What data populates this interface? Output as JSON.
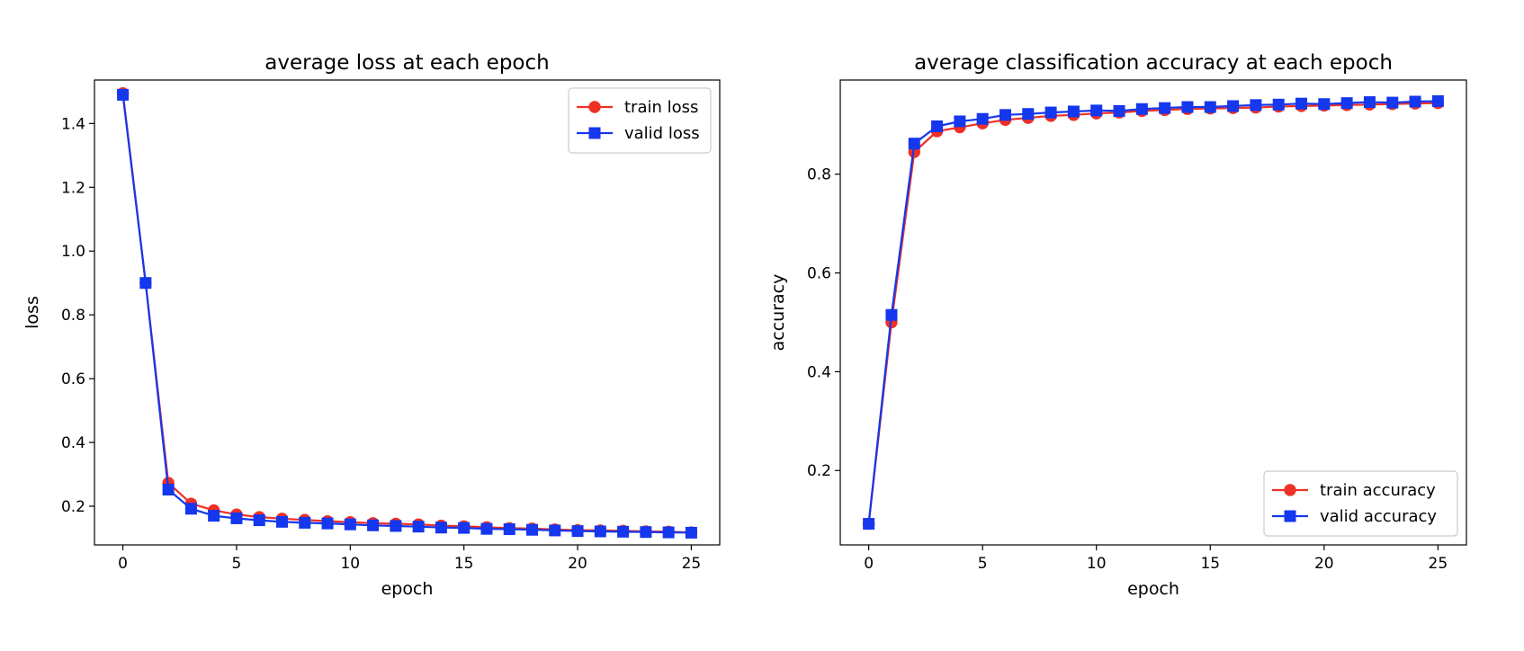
{
  "chart_data": [
    {
      "type": "line",
      "title": "average loss at each epoch",
      "xlabel": "epoch",
      "ylabel": "loss",
      "xlim": [
        -1.25,
        26.25
      ],
      "ylim": [
        0.0787,
        1.5363
      ],
      "xticks": [
        0,
        5,
        10,
        15,
        20,
        25
      ],
      "yticks": [
        0.2,
        0.4,
        0.6,
        0.8,
        1.0,
        1.2,
        1.4
      ],
      "xtick_labels": [
        "0",
        "5",
        "10",
        "15",
        "20",
        "25"
      ],
      "ytick_labels": [
        "0.2",
        "0.4",
        "0.6",
        "0.8",
        "1.0",
        "1.2",
        "1.4"
      ],
      "legend": "upper-right",
      "grid": false,
      "x": [
        0,
        1,
        2,
        3,
        4,
        5,
        6,
        7,
        8,
        9,
        10,
        11,
        12,
        13,
        14,
        15,
        16,
        17,
        18,
        19,
        20,
        21,
        22,
        23,
        24,
        25
      ],
      "series": [
        {
          "name": "train loss",
          "color": "#ee3026",
          "marker": "circle",
          "values": [
            1.495,
            0.9,
            0.273,
            0.208,
            0.187,
            0.174,
            0.166,
            0.161,
            0.157,
            0.153,
            0.15,
            0.147,
            0.145,
            0.143,
            0.139,
            0.137,
            0.134,
            0.131,
            0.13,
            0.127,
            0.125,
            0.124,
            0.123,
            0.121,
            0.12,
            0.118
          ]
        },
        {
          "name": "valid loss",
          "color": "#1537ee",
          "marker": "square",
          "values": [
            1.49,
            0.9,
            0.252,
            0.192,
            0.17,
            0.162,
            0.156,
            0.151,
            0.148,
            0.146,
            0.143,
            0.14,
            0.138,
            0.136,
            0.133,
            0.132,
            0.129,
            0.128,
            0.126,
            0.124,
            0.122,
            0.121,
            0.12,
            0.119,
            0.118,
            0.117
          ]
        }
      ]
    },
    {
      "type": "line",
      "title": "average classification accuracy at each epoch",
      "xlabel": "epoch",
      "ylabel": "accuracy",
      "xlim": [
        -1.25,
        26.25
      ],
      "ylim": [
        0.0493,
        0.9907
      ],
      "xticks": [
        0,
        5,
        10,
        15,
        20,
        25
      ],
      "yticks": [
        0.2,
        0.4,
        0.6,
        0.8
      ],
      "xtick_labels": [
        "0",
        "5",
        "10",
        "15",
        "20",
        "25"
      ],
      "ytick_labels": [
        "0.2",
        "0.4",
        "0.6",
        "0.8"
      ],
      "legend": "lower-right",
      "grid": false,
      "x": [
        0,
        1,
        2,
        3,
        4,
        5,
        6,
        7,
        8,
        9,
        10,
        11,
        12,
        13,
        14,
        15,
        16,
        17,
        18,
        19,
        20,
        21,
        22,
        23,
        24,
        25
      ],
      "series": [
        {
          "name": "train accuracy",
          "color": "#ee3026",
          "marker": "circle",
          "values": [
            0.092,
            0.5,
            0.845,
            0.887,
            0.895,
            0.903,
            0.91,
            0.914,
            0.918,
            0.92,
            0.923,
            0.925,
            0.928,
            0.93,
            0.932,
            0.933,
            0.934,
            0.935,
            0.937,
            0.938,
            0.939,
            0.94,
            0.941,
            0.942,
            0.943,
            0.944
          ]
        },
        {
          "name": "valid accuracy",
          "color": "#1537ee",
          "marker": "square",
          "values": [
            0.092,
            0.515,
            0.862,
            0.897,
            0.907,
            0.912,
            0.92,
            0.922,
            0.925,
            0.927,
            0.929,
            0.928,
            0.932,
            0.934,
            0.936,
            0.936,
            0.938,
            0.94,
            0.941,
            0.943,
            0.942,
            0.944,
            0.946,
            0.945,
            0.947,
            0.948
          ]
        }
      ]
    }
  ]
}
